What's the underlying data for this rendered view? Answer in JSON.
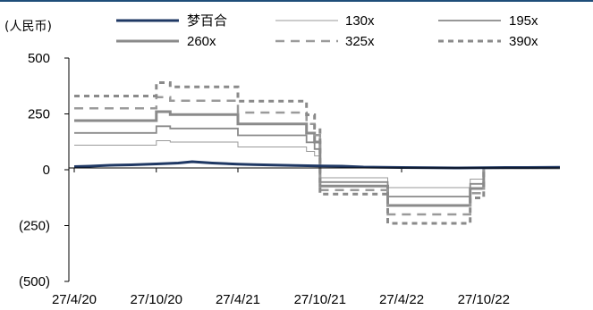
{
  "chart_data": {
    "type": "line",
    "unit_label": "(人民币)",
    "x_ticks": [
      "27/4/20",
      "27/10/20",
      "27/4/21",
      "27/10/21",
      "27/4/22",
      "27/10/22"
    ],
    "x_range": [
      "2020-04-27",
      "2023-04-15"
    ],
    "y_ticks": [
      "500",
      "250",
      "0",
      "(250)",
      "(500)"
    ],
    "ylim": [
      -500,
      500
    ],
    "legend_position": "top",
    "series": [
      {
        "name": "梦百合",
        "style": "solid-thick",
        "color": "#1f3864",
        "points": [
          [
            "2020-04-27",
            14
          ],
          [
            "2020-06-01",
            16
          ],
          [
            "2020-07-15",
            20
          ],
          [
            "2020-09-01",
            22
          ],
          [
            "2020-10-27",
            26
          ],
          [
            "2020-12-15",
            30
          ],
          [
            "2021-01-15",
            36
          ],
          [
            "2021-03-01",
            30
          ],
          [
            "2021-04-27",
            25
          ],
          [
            "2021-06-01",
            23
          ],
          [
            "2021-07-15",
            21
          ],
          [
            "2021-09-01",
            19
          ],
          [
            "2021-10-27",
            17
          ],
          [
            "2021-12-15",
            16
          ],
          [
            "2022-02-01",
            12
          ],
          [
            "2022-04-27",
            10
          ],
          [
            "2022-07-01",
            9
          ],
          [
            "2022-09-01",
            8
          ],
          [
            "2022-10-27",
            9
          ],
          [
            "2022-12-15",
            10
          ],
          [
            "2023-02-01",
            10
          ],
          [
            "2023-04-15",
            11
          ]
        ]
      },
      {
        "name": "130x",
        "style": "solid-thin",
        "color": "#9a9a9a",
        "points": [
          [
            "2020-04-27",
            110
          ],
          [
            "2020-10-27",
            110
          ],
          [
            "2020-10-27",
            130
          ],
          [
            "2020-11-27",
            130
          ],
          [
            "2020-11-27",
            124
          ],
          [
            "2021-04-27",
            124
          ],
          [
            "2021-04-27",
            102
          ],
          [
            "2021-09-27",
            102
          ],
          [
            "2021-09-27",
            82
          ],
          [
            "2021-10-15",
            82
          ],
          [
            "2021-10-15",
            62
          ],
          [
            "2021-10-27",
            62
          ],
          [
            "2021-10-27",
            -36
          ],
          [
            "2022-03-27",
            -36
          ],
          [
            "2022-03-27",
            -80
          ],
          [
            "2022-09-27",
            -80
          ],
          [
            "2022-09-27",
            -42
          ],
          [
            "2022-10-27",
            -42
          ],
          [
            "2022-10-27",
            8
          ],
          [
            "2023-04-15",
            8
          ]
        ]
      },
      {
        "name": "195x",
        "style": "solid-medium",
        "color": "#8a8a8a",
        "points": [
          [
            "2020-04-27",
            165
          ],
          [
            "2020-10-27",
            165
          ],
          [
            "2020-10-27",
            195
          ],
          [
            "2020-11-27",
            195
          ],
          [
            "2020-11-27",
            185
          ],
          [
            "2021-04-27",
            185
          ],
          [
            "2021-04-27",
            154
          ],
          [
            "2021-09-27",
            154
          ],
          [
            "2021-09-27",
            123
          ],
          [
            "2021-10-15",
            123
          ],
          [
            "2021-10-15",
            93
          ],
          [
            "2021-10-27",
            93
          ],
          [
            "2021-10-27",
            -55
          ],
          [
            "2022-03-27",
            -55
          ],
          [
            "2022-03-27",
            -120
          ],
          [
            "2022-09-27",
            -120
          ],
          [
            "2022-09-27",
            -63
          ],
          [
            "2022-10-27",
            -63
          ],
          [
            "2022-10-27",
            8
          ],
          [
            "2023-04-15",
            8
          ]
        ]
      },
      {
        "name": "260x",
        "style": "solid-thick",
        "color": "#8a8a8a",
        "points": [
          [
            "2020-04-27",
            220
          ],
          [
            "2020-10-27",
            220
          ],
          [
            "2020-10-27",
            260
          ],
          [
            "2020-11-27",
            260
          ],
          [
            "2020-11-27",
            247
          ],
          [
            "2021-04-27",
            247
          ],
          [
            "2021-04-27",
            205
          ],
          [
            "2021-09-27",
            205
          ],
          [
            "2021-09-27",
            164
          ],
          [
            "2021-10-15",
            164
          ],
          [
            "2021-10-15",
            124
          ],
          [
            "2021-10-27",
            124
          ],
          [
            "2021-10-27",
            -73
          ],
          [
            "2022-03-27",
            -73
          ],
          [
            "2022-03-27",
            -160
          ],
          [
            "2022-09-27",
            -160
          ],
          [
            "2022-09-27",
            -84
          ],
          [
            "2022-10-27",
            -84
          ],
          [
            "2022-10-27",
            8
          ],
          [
            "2023-04-15",
            8
          ]
        ]
      },
      {
        "name": "325x",
        "style": "dashed",
        "color": "#9a9a9a",
        "points": [
          [
            "2020-04-27",
            275
          ],
          [
            "2020-10-27",
            275
          ],
          [
            "2020-10-27",
            325
          ],
          [
            "2020-11-27",
            325
          ],
          [
            "2020-11-27",
            309
          ],
          [
            "2021-04-27",
            309
          ],
          [
            "2021-04-27",
            256
          ],
          [
            "2021-09-27",
            256
          ],
          [
            "2021-09-27",
            205
          ],
          [
            "2021-10-15",
            205
          ],
          [
            "2021-10-15",
            155
          ],
          [
            "2021-10-27",
            155
          ],
          [
            "2021-10-27",
            -91
          ],
          [
            "2022-03-27",
            -91
          ],
          [
            "2022-03-27",
            -200
          ],
          [
            "2022-09-27",
            -200
          ],
          [
            "2022-09-27",
            -105
          ],
          [
            "2022-10-27",
            -105
          ],
          [
            "2022-10-27",
            8
          ],
          [
            "2023-04-15",
            8
          ]
        ]
      },
      {
        "name": "390x",
        "style": "dashed-thick",
        "color": "#8a8a8a",
        "points": [
          [
            "2020-04-27",
            330
          ],
          [
            "2020-10-27",
            330
          ],
          [
            "2020-10-27",
            390
          ],
          [
            "2020-11-27",
            390
          ],
          [
            "2020-11-27",
            371
          ],
          [
            "2021-04-27",
            371
          ],
          [
            "2021-04-27",
            307
          ],
          [
            "2021-09-27",
            307
          ],
          [
            "2021-09-27",
            246
          ],
          [
            "2021-10-15",
            246
          ],
          [
            "2021-10-15",
            186
          ],
          [
            "2021-10-27",
            186
          ],
          [
            "2021-10-27",
            -109
          ],
          [
            "2022-03-27",
            -109
          ],
          [
            "2022-03-27",
            -240
          ],
          [
            "2022-09-27",
            -240
          ],
          [
            "2022-09-27",
            -126
          ],
          [
            "2022-10-27",
            -126
          ],
          [
            "2022-10-27",
            8
          ],
          [
            "2023-04-15",
            8
          ]
        ]
      }
    ]
  }
}
